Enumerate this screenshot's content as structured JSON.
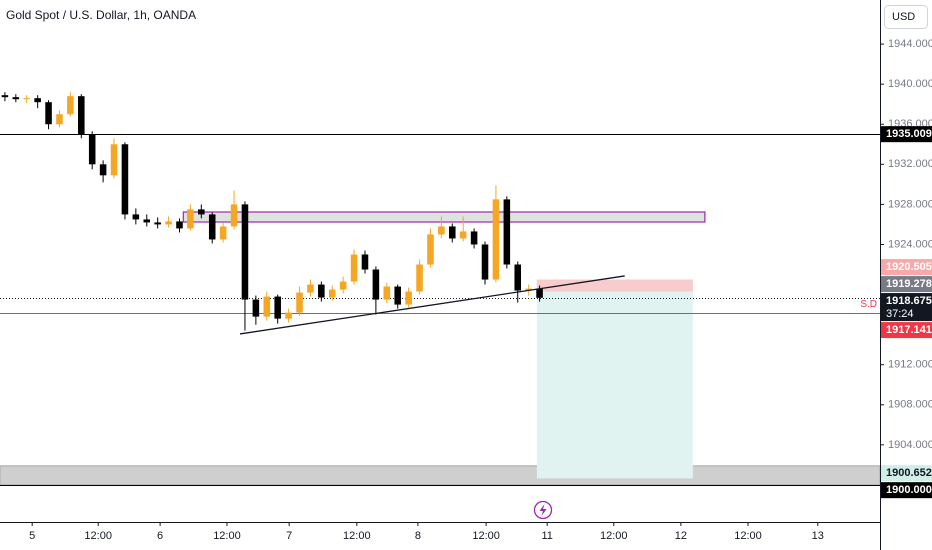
{
  "chart_data": {
    "type": "candlestick",
    "title": "Gold Spot / U.S. Dollar, 1h, OANDA",
    "currency": "USD",
    "countdown": "37:24",
    "annotation": "S.D",
    "up_color": "#f5a623",
    "down_color": "#000000",
    "x": [
      -5,
      -3,
      -1,
      1,
      3,
      5,
      7,
      9,
      11,
      13,
      15,
      17,
      19,
      21,
      23,
      25,
      27,
      29,
      31,
      33,
      35,
      37,
      39,
      41,
      43,
      45,
      47,
      49,
      51,
      53,
      55,
      57,
      59,
      61,
      63,
      65,
      67,
      69,
      71,
      73,
      75,
      77,
      79,
      81,
      83,
      85,
      87,
      89,
      91,
      93
    ],
    "open": [
      1938.9,
      1938.7,
      1938.5,
      1938.6,
      1938.2,
      1936.0,
      1937.0,
      1938.8,
      1935.0,
      1932.0,
      1930.9,
      1934.0,
      1927.0,
      1926.5,
      1926.2,
      1926.0,
      1926.3,
      1925.6,
      1927.5,
      1927.0,
      1924.5,
      1925.8,
      1928.0,
      1918.5,
      1916.8,
      1918.8,
      1916.6,
      1917.2,
      1919.2,
      1920.0,
      1918.7,
      1919.5,
      1920.3,
      1923.0,
      1921.5,
      1918.5,
      1919.8,
      1918.0,
      1919.3,
      1922.0,
      1925.0,
      1925.8,
      1924.6,
      1925.3,
      1924.0,
      1920.5,
      1928.5,
      1922.0,
      1919.4,
      1919.6
    ],
    "high": [
      1939.2,
      1939.0,
      1938.9,
      1938.9,
      1938.4,
      1937.4,
      1939.2,
      1939.0,
      1935.3,
      1932.4,
      1934.6,
      1934.2,
      1927.6,
      1927.0,
      1926.7,
      1926.8,
      1926.6,
      1928.0,
      1928.0,
      1927.2,
      1926.2,
      1929.4,
      1928.3,
      1918.9,
      1919.3,
      1919.0,
      1917.6,
      1919.8,
      1920.5,
      1920.3,
      1919.9,
      1920.8,
      1923.5,
      1923.4,
      1921.8,
      1920.2,
      1920.0,
      1919.7,
      1922.5,
      1925.6,
      1926.8,
      1926.1,
      1926.8,
      1925.6,
      1924.3,
      1929.9,
      1928.8,
      1922.3,
      1920.0,
      1919.9
    ],
    "low": [
      1938.3,
      1938.2,
      1938.1,
      1937.6,
      1935.5,
      1935.7,
      1936.8,
      1934.6,
      1931.5,
      1930.2,
      1930.6,
      1926.5,
      1926.0,
      1925.8,
      1925.6,
      1925.7,
      1925.2,
      1925.4,
      1926.6,
      1924.1,
      1924.2,
      1925.5,
      1915.4,
      1916.0,
      1916.4,
      1916.1,
      1916.2,
      1916.9,
      1918.8,
      1918.3,
      1918.4,
      1919.1,
      1920.0,
      1921.1,
      1917.0,
      1918.1,
      1917.6,
      1917.7,
      1919.0,
      1921.7,
      1924.6,
      1924.2,
      1924.3,
      1923.6,
      1920.0,
      1920.2,
      1921.6,
      1918.2,
      1918.9,
      1918.3
    ],
    "close": [
      1938.7,
      1938.5,
      1938.6,
      1938.2,
      1936.0,
      1937.0,
      1938.8,
      1935.0,
      1932.0,
      1930.9,
      1934.0,
      1927.0,
      1926.5,
      1926.2,
      1926.0,
      1926.3,
      1925.6,
      1927.5,
      1927.0,
      1924.5,
      1925.8,
      1928.0,
      1918.5,
      1916.8,
      1918.8,
      1916.6,
      1917.2,
      1919.2,
      1920.0,
      1918.7,
      1919.5,
      1920.3,
      1923.0,
      1921.5,
      1918.5,
      1919.8,
      1918.0,
      1919.3,
      1922.0,
      1925.0,
      1925.8,
      1924.6,
      1925.3,
      1924.0,
      1920.5,
      1928.5,
      1922.0,
      1919.4,
      1919.6,
      1918.675
    ],
    "xlim": [
      -5.9,
      155.4
    ],
    "xticks": [
      {
        "value": 0,
        "label": "5"
      },
      {
        "value": 12.1,
        "label": "12:00"
      },
      {
        "value": 23.45,
        "label": "6"
      },
      {
        "value": 35.7,
        "label": "12:00"
      },
      {
        "value": 47.1,
        "label": "7"
      },
      {
        "value": 59.5,
        "label": "12:00"
      },
      {
        "value": 70.7,
        "label": "8"
      },
      {
        "value": 83.2,
        "label": "12:00"
      },
      {
        "value": 94.4,
        "label": "11"
      },
      {
        "value": 106.6,
        "label": "12:00"
      },
      {
        "value": 118.9,
        "label": "12"
      },
      {
        "value": 131.2,
        "label": "12:00"
      },
      {
        "value": 144,
        "label": "13"
      }
    ],
    "ylim": [
      1896.3,
      1948.4
    ],
    "yticks": [
      {
        "value": 1904,
        "label": "1904.000"
      },
      {
        "value": 1908,
        "label": "1908.000"
      },
      {
        "value": 1912,
        "label": "1912.000"
      },
      {
        "value": 1924,
        "label": "1924.000"
      },
      {
        "value": 1928,
        "label": "1928.000"
      },
      {
        "value": 1932,
        "label": "1932.000"
      },
      {
        "value": 1936,
        "label": "1936.000"
      },
      {
        "value": 1940,
        "label": "1940.000"
      },
      {
        "value": 1944,
        "label": "1944.000"
      }
    ],
    "price_labels": [
      {
        "value": 1935.009,
        "label": "1935.009",
        "bg": "#000000",
        "fg": "#ffffff",
        "line": "solid",
        "line_color": "#000000"
      },
      {
        "value": 1920.505,
        "label": "1920.505",
        "bg": "#f7a9a9",
        "fg": "#ffffff"
      },
      {
        "value": 1919.278,
        "label": "1919.278",
        "bg": "#787b86",
        "fg": "#ffffff"
      },
      {
        "value": 1918.675,
        "label": "1918.675",
        "bg": "#131722",
        "fg": "#ffffff",
        "line": "dotted",
        "line_color": "#131722",
        "countdown": true
      },
      {
        "value": 1917.141,
        "label": "1917.141",
        "bg": "#f23645",
        "fg": "#ffffff",
        "line": "solid",
        "line_color": "#f23645"
      },
      {
        "value": 1900.652,
        "label": "1900.652",
        "bg": "#cfeee8",
        "fg": "#131722"
      },
      {
        "value": 1900.0,
        "label": "1900.000",
        "bg": "#000000",
        "fg": "#ffffff",
        "line": "solid",
        "line_color": "#000000"
      }
    ],
    "zones": [
      {
        "x": [
          27.7,
          123.3
        ],
        "y": [
          1926.24,
          1927.24
        ],
        "fill": "#dfe3df",
        "stroke": "#9c27b0"
      },
      {
        "x": [
          -5.9,
          155.4
        ],
        "y": [
          1900.0,
          1901.9
        ],
        "fill": "#cfcfcf",
        "stroke": "#b0b0b0"
      }
    ],
    "position": {
      "x": [
        92.5,
        121.1
      ],
      "entry": 1919.278,
      "stop": 1920.505,
      "target": 1900.652,
      "stop_color": "#f8cccc",
      "target_color": "#e0f3f0"
    },
    "trendline": {
      "x": [
        38.1,
        108.6
      ],
      "y": [
        1915.07,
        1920.86
      ],
      "color": "#131722"
    }
  }
}
